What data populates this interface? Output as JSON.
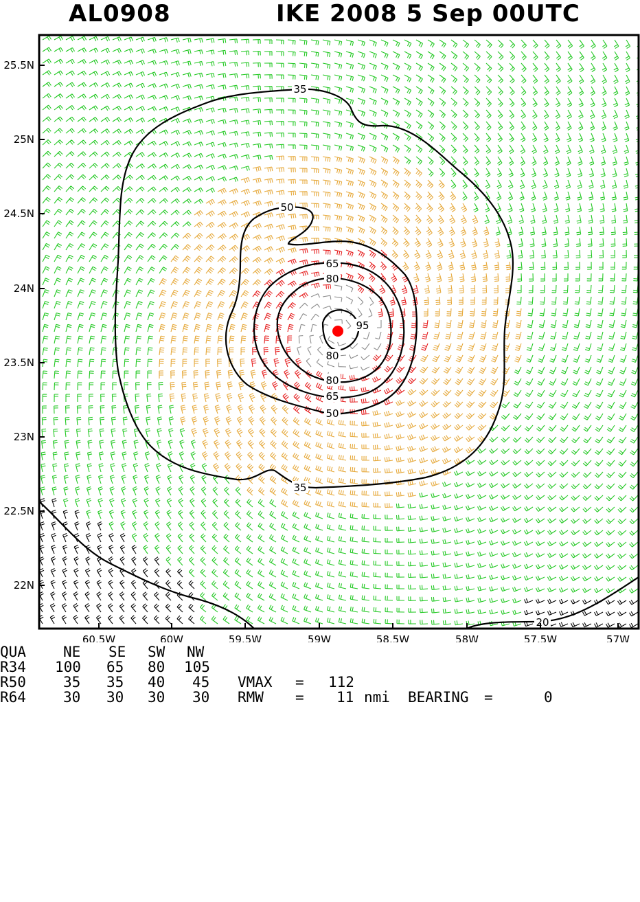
{
  "title": {
    "storm_id": "AL0908",
    "storm_info": "IKE 2008   5 Sep 00UTC"
  },
  "map": {
    "lat_labels": [
      "25.5N",
      "25N",
      "24.5N",
      "24N",
      "23.5N",
      "23N",
      "22.5N",
      "22N"
    ],
    "lon_labels": [
      "60.5W",
      "60W",
      "59.5W",
      "59W",
      "58.5W",
      "58W",
      "57.5W",
      "57W"
    ],
    "contour_labels": [
      "35",
      "50",
      "65",
      "80",
      "95",
      "80",
      "80",
      "65",
      "50",
      "35",
      "20"
    ],
    "colors": {
      "green": "#21c821",
      "orange": "#e6a93b",
      "red": "#e62020",
      "gray": "#8c8c8c",
      "contour": "#000000",
      "center": "#ff0000"
    }
  },
  "stats": {
    "header": [
      "QUA",
      "NE",
      "SE",
      "SW",
      "NW"
    ],
    "r34": [
      "R34",
      "100",
      "65",
      "80",
      "105"
    ],
    "r50": [
      "R50",
      "35",
      "35",
      "40",
      "45"
    ],
    "r64": [
      "R64",
      "30",
      "30",
      "30",
      "30"
    ],
    "vmax_label": "VMAX",
    "eq1": "=",
    "vmax_value": "112",
    "rmw_label": "RMW",
    "eq2": "=",
    "rmw_value": "11",
    "rmw_unit": "nmi",
    "bearing_label": "BEARING",
    "eq3": "=",
    "bearing_value": "0"
  }
}
